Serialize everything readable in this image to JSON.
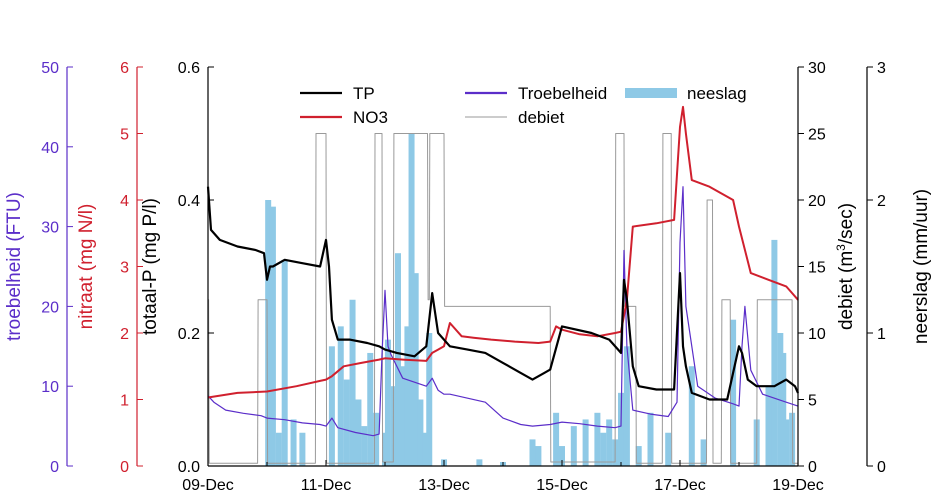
{
  "chart_data": {
    "type": "line",
    "x_ticks": [
      "09-Dec",
      "11-Dec",
      "13-Dec",
      "15-Dec",
      "17-Dec",
      "19-Dec"
    ],
    "x_days": [
      9,
      11,
      13,
      15,
      17,
      19
    ],
    "xlim": [
      9,
      19
    ],
    "axes": [
      {
        "id": "troebelheid",
        "label": "troebelheid (FTU)",
        "color": "#5b2ec9",
        "ylim": [
          0,
          50
        ],
        "ticks": [
          "0",
          "10",
          "20",
          "30",
          "40",
          "50"
        ]
      },
      {
        "id": "nitraat",
        "label": "nitraat (mg N/l)",
        "color": "#d0202e",
        "ylim": [
          0,
          6
        ],
        "ticks": [
          "0",
          "1",
          "2",
          "3",
          "4",
          "5",
          "6"
        ]
      },
      {
        "id": "totaalp",
        "label": "totaal-P (mg P/l)",
        "color": "#000000",
        "ylim": [
          0,
          0.6
        ],
        "ticks": [
          "0.0",
          "0.2",
          "0.4",
          "0.6"
        ]
      },
      {
        "id": "debiet",
        "label_main": "debiet (m",
        "label_sup": "3",
        "label_end": "/sec)",
        "color": "#000000",
        "ylim": [
          0,
          30
        ],
        "ticks": [
          "0",
          "5",
          "10",
          "15",
          "20",
          "25",
          "30"
        ]
      },
      {
        "id": "neerslag",
        "label": "neerslag (mm/uur)",
        "color": "#000000",
        "ylim": [
          0,
          3
        ],
        "ticks": [
          "0",
          "1",
          "2",
          "3"
        ]
      }
    ],
    "legend": [
      {
        "name": "TP",
        "color": "#000000",
        "kind": "line"
      },
      {
        "name": "NO3",
        "color": "#d0202e",
        "kind": "line"
      },
      {
        "name": "Troebelheid",
        "color": "#5b2ec9",
        "kind": "line"
      },
      {
        "name": "debiet",
        "color": "#9a9a9a",
        "kind": "line"
      },
      {
        "name": "neeslag",
        "color": "#8ec9e6",
        "kind": "bar"
      }
    ],
    "series": [
      {
        "name": "TP",
        "axis": "totaalp",
        "color": "#000000",
        "x": [
          9.0,
          9.05,
          9.2,
          9.5,
          9.8,
          9.95,
          10.0,
          10.05,
          10.1,
          10.3,
          10.6,
          10.9,
          11.0,
          11.05,
          11.1,
          11.2,
          11.4,
          11.7,
          11.9,
          12.0,
          12.2,
          12.5,
          12.7,
          12.8,
          12.9,
          13.1,
          13.4,
          13.7,
          14.0,
          14.3,
          14.5,
          14.7,
          14.8,
          15.0,
          15.5,
          15.8,
          16.0,
          16.05,
          16.1,
          16.2,
          16.3,
          16.6,
          16.9,
          17.0,
          17.05,
          17.1,
          17.2,
          17.5,
          17.8,
          18.0,
          18.05,
          18.15,
          18.3,
          18.6,
          18.8,
          18.95,
          19.0
        ],
        "y": [
          0.42,
          0.355,
          0.34,
          0.33,
          0.325,
          0.32,
          0.28,
          0.3,
          0.3,
          0.31,
          0.305,
          0.3,
          0.34,
          0.3,
          0.22,
          0.19,
          0.19,
          0.185,
          0.18,
          0.175,
          0.17,
          0.165,
          0.18,
          0.26,
          0.2,
          0.18,
          0.175,
          0.17,
          0.155,
          0.14,
          0.13,
          0.14,
          0.145,
          0.21,
          0.2,
          0.19,
          0.17,
          0.28,
          0.25,
          0.15,
          0.12,
          0.115,
          0.115,
          0.29,
          0.18,
          0.15,
          0.11,
          0.1,
          0.1,
          0.18,
          0.17,
          0.13,
          0.12,
          0.12,
          0.13,
          0.12,
          0.11
        ]
      },
      {
        "name": "NO3",
        "axis": "nitraat",
        "color": "#d0202e",
        "x": [
          9.0,
          9.5,
          10.0,
          10.5,
          10.9,
          11.0,
          11.1,
          11.3,
          11.6,
          11.9,
          12.0,
          12.3,
          12.7,
          12.8,
          12.9,
          13.0,
          13.1,
          13.3,
          13.5,
          13.8,
          14.2,
          14.6,
          14.8,
          14.9,
          15.0,
          15.3,
          15.6,
          15.9,
          16.0,
          16.1,
          16.2,
          16.6,
          16.9,
          17.0,
          17.05,
          17.1,
          17.2,
          17.5,
          17.7,
          17.9,
          18.0,
          18.2,
          18.5,
          18.8,
          19.0
        ],
        "y": [
          1.03,
          1.1,
          1.12,
          1.2,
          1.28,
          1.3,
          1.35,
          1.5,
          1.55,
          1.6,
          1.62,
          1.6,
          1.58,
          1.7,
          1.75,
          1.8,
          2.15,
          1.95,
          1.93,
          1.9,
          1.87,
          1.85,
          1.87,
          2.1,
          2.05,
          1.98,
          1.95,
          2.0,
          2.02,
          2.5,
          3.6,
          3.65,
          3.7,
          5.1,
          5.4,
          5.0,
          4.3,
          4.2,
          4.1,
          4.0,
          3.6,
          2.9,
          2.8,
          2.7,
          2.5
        ]
      },
      {
        "name": "Troebelheid",
        "axis": "troebelheid",
        "color": "#5b2ec9",
        "x": [
          9.0,
          9.1,
          9.3,
          9.6,
          9.9,
          10.0,
          10.3,
          10.6,
          10.9,
          11.0,
          11.1,
          11.2,
          11.5,
          11.8,
          11.9,
          11.95,
          12.0,
          12.05,
          12.1,
          12.3,
          12.5,
          12.7,
          12.8,
          12.9,
          13.0,
          13.1,
          13.4,
          13.7,
          14.0,
          14.3,
          14.5,
          14.8,
          15.0,
          15.3,
          15.6,
          15.9,
          16.0,
          16.05,
          16.1,
          16.2,
          16.5,
          16.8,
          16.95,
          17.0,
          17.05,
          17.1,
          17.3,
          17.6,
          17.9,
          18.0,
          18.05,
          18.1,
          18.2,
          18.4,
          18.6,
          18.8,
          19.0
        ],
        "y": [
          8.8,
          8.0,
          7.0,
          6.6,
          6.3,
          6.0,
          5.8,
          5.4,
          5.2,
          5.0,
          6.0,
          4.8,
          4.2,
          3.8,
          4.0,
          14,
          22,
          15,
          14,
          11,
          10.5,
          10.0,
          11.0,
          9.5,
          9.0,
          9.0,
          8.5,
          8.0,
          6.0,
          5.2,
          5.0,
          5.2,
          5.5,
          5.3,
          5.0,
          4.8,
          5.0,
          27.0,
          15.0,
          7.0,
          6.5,
          6.2,
          8.0,
          28.0,
          35.0,
          20.0,
          10.0,
          8.5,
          7.8,
          7.5,
          15.0,
          20.0,
          12.0,
          9.0,
          8.5,
          8.0,
          7.5
        ]
      },
      {
        "name": "debiet",
        "axis": "debiet",
        "color": "#9a9a9a",
        "x": [
          9.0,
          9.01,
          9.02,
          9.84,
          9.85,
          10.0,
          10.01,
          10.82,
          10.83,
          11.0,
          11.01,
          11.82,
          11.83,
          11.95,
          11.96,
          12.14,
          12.15,
          12.72,
          12.73,
          12.75,
          12.76,
          13.0,
          13.01,
          14.8,
          14.81,
          15.9,
          15.91,
          16.05,
          16.06,
          16.25,
          16.26,
          16.7,
          16.71,
          16.85,
          16.86,
          17.45,
          17.46,
          17.55,
          17.56,
          17.7,
          17.71,
          17.85,
          17.86,
          18.3,
          18.31,
          18.9,
          18.91,
          19.0
        ],
        "y": [
          12.5,
          12.5,
          0.2,
          0.2,
          12.5,
          12.5,
          0.2,
          0.2,
          25.0,
          25.0,
          0.2,
          0.2,
          25.0,
          25.0,
          0.3,
          0.3,
          25.0,
          25.0,
          12.5,
          12.5,
          25.0,
          25.0,
          12.0,
          12.0,
          0.3,
          0.3,
          25.0,
          25.0,
          12.0,
          12.0,
          0.2,
          0.2,
          25.0,
          25.0,
          0.2,
          0.2,
          20.0,
          20.0,
          0.2,
          0.2,
          12.5,
          12.5,
          0.2,
          0.2,
          12.5,
          12.5,
          0.2,
          0.2
        ]
      },
      {
        "name": "neeslag",
        "axis": "neerslag",
        "color": "#8ec9e6",
        "kind": "bar",
        "x": [
          10.02,
          10.1,
          10.2,
          10.3,
          10.45,
          10.6,
          11.1,
          11.25,
          11.35,
          11.45,
          11.55,
          11.65,
          11.75,
          11.85,
          12.0,
          12.05,
          12.15,
          12.22,
          12.3,
          12.38,
          12.45,
          12.52,
          12.6,
          12.68,
          12.75,
          13.0,
          13.6,
          14.0,
          14.5,
          14.6,
          14.9,
          15.0,
          15.2,
          15.4,
          15.6,
          15.7,
          15.8,
          15.9,
          16.0,
          16.1,
          16.3,
          16.5,
          16.8,
          17.2,
          17.4,
          17.9,
          18.3,
          18.5,
          18.6,
          18.7,
          18.75,
          18.8,
          18.9
        ],
        "y": [
          2.0,
          1.95,
          0.25,
          1.55,
          0.35,
          0.25,
          0.9,
          1.05,
          0.65,
          1.25,
          0.5,
          0.3,
          0.85,
          0.4,
          0.25,
          0.95,
          0.6,
          1.6,
          0.75,
          1.05,
          2.5,
          1.45,
          0.5,
          0.25,
          1.0,
          0.05,
          0.05,
          0.03,
          0.2,
          0.15,
          0.4,
          0.15,
          0.3,
          0.35,
          0.4,
          0.25,
          0.35,
          0.2,
          0.55,
          0.9,
          0.15,
          0.4,
          0.25,
          0.75,
          0.2,
          1.1,
          0.35,
          0.6,
          1.7,
          1.0,
          0.85,
          0.35,
          0.4
        ]
      }
    ]
  }
}
